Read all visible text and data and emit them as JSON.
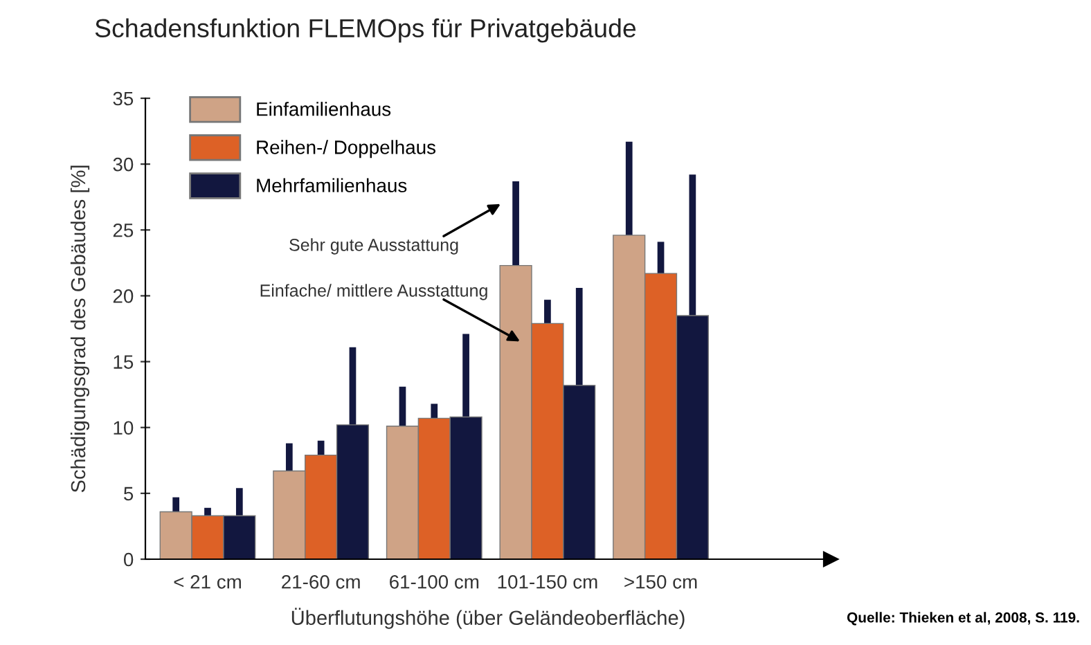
{
  "chart_data": {
    "type": "bar",
    "title": "Schadensfunktion FLEMOps für Privatgebäude",
    "xlabel": "Überflutungshöhe (über Geländeoberfläche)",
    "ylabel": "Schädigungsgrad des Gebäudes [%]",
    "categories": [
      "< 21 cm",
      "21-60 cm",
      "61-100 cm",
      "101-150 cm",
      ">150 cm"
    ],
    "series": [
      {
        "name": "Einfamilienhaus",
        "color": "#cfa386",
        "values": [
          3.6,
          6.7,
          10.1,
          22.3,
          24.6
        ],
        "errors": [
          [
            3.6,
            4.7
          ],
          [
            6.7,
            8.8
          ],
          [
            10.1,
            13.1
          ],
          [
            22.3,
            28.7
          ],
          [
            24.6,
            31.7
          ]
        ]
      },
      {
        "name": "Reihen-/ Doppelhaus",
        "color": "#dd6126",
        "values": [
          3.3,
          7.9,
          10.7,
          17.9,
          21.7
        ],
        "errors": [
          [
            3.3,
            3.9
          ],
          [
            7.9,
            9.0
          ],
          [
            10.7,
            11.8
          ],
          [
            17.9,
            19.7
          ],
          [
            21.7,
            24.1
          ]
        ]
      },
      {
        "name": "Mehrfamilienhaus",
        "color": "#12173f",
        "values": [
          3.3,
          10.2,
          10.8,
          13.2,
          18.5
        ],
        "errors": [
          [
            3.3,
            5.4
          ],
          [
            10.2,
            16.1
          ],
          [
            10.8,
            17.1
          ],
          [
            13.2,
            20.6
          ],
          [
            18.5,
            29.2
          ]
        ]
      }
    ],
    "ylim": [
      0,
      35
    ],
    "yticks": [
      0,
      5,
      10,
      15,
      20,
      25,
      30,
      35
    ],
    "grid": false,
    "legend": "top left",
    "annotations": [
      "Sehr gute Ausstattung",
      "Einfache/ mittlere Ausstattung",
      "Quelle: Thieken et al, 2008, S. 119."
    ]
  }
}
